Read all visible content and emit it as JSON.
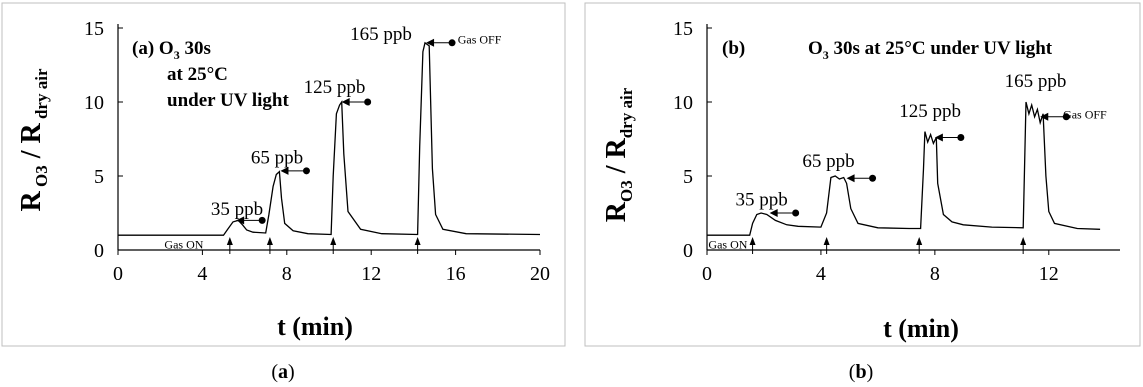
{
  "chart_data": [
    {
      "type": "line",
      "panel_label": "(a)",
      "caption_pre": "(",
      "caption_letter": "a",
      "caption_post": ")",
      "annotation": [
        "(a)  O₃ 30s",
        "at 25°C",
        "under UV light"
      ],
      "xlabel": "t (min)",
      "ylabel": "R O3 / R dry air",
      "xlim": [
        0,
        20
      ],
      "ylim": [
        0,
        15
      ],
      "xticks": [
        0,
        4,
        8,
        12,
        16,
        20
      ],
      "yticks": [
        0,
        5,
        10,
        15
      ],
      "series": [
        {
          "x": [
            0,
            5.0,
            5.2,
            5.45,
            5.7,
            5.9,
            6.1,
            6.4,
            7.0,
            7.15,
            7.35,
            7.5,
            7.65,
            7.75,
            7.9,
            8.3,
            9.0,
            10.1,
            10.2,
            10.35,
            10.5,
            10.6,
            10.7,
            10.9,
            11.5,
            12.5,
            14.2,
            14.3,
            14.45,
            14.55,
            14.75,
            14.9,
            15.05,
            15.4,
            16.5,
            20
          ],
          "y": [
            1.0,
            1.0,
            1.4,
            1.9,
            2.0,
            1.7,
            1.35,
            1.2,
            1.15,
            2.4,
            4.3,
            5.1,
            5.3,
            3.5,
            1.8,
            1.3,
            1.1,
            1.05,
            5.0,
            9.2,
            9.8,
            10.0,
            6.5,
            2.6,
            1.4,
            1.1,
            1.05,
            7.0,
            13.4,
            14.0,
            13.8,
            5.5,
            2.4,
            1.4,
            1.1,
            1.05
          ]
        }
      ],
      "labels": [
        {
          "text": "35 ppb",
          "x": 4.4,
          "y": 2.35
        },
        {
          "text": "65 ppb",
          "x": 6.3,
          "y": 5.85
        },
        {
          "text": "125 ppb",
          "x": 8.8,
          "y": 10.6
        },
        {
          "text": "165 ppb",
          "x": 11.0,
          "y": 14.2
        },
        {
          "text": "Gas OFF",
          "x": 16.1,
          "y": 13.95
        },
        {
          "text": "Gas ON",
          "x": 2.2,
          "y": 0.1
        }
      ],
      "gas_on_times": [
        5.3,
        7.2,
        10.2,
        14.2
      ],
      "gas_off_markers": [
        {
          "x": 5.6,
          "y": 2.0
        },
        {
          "x": 7.7,
          "y": 5.35
        },
        {
          "x": 10.6,
          "y": 10.0
        },
        {
          "x": 14.6,
          "y": 14.0
        }
      ]
    },
    {
      "type": "line",
      "panel_label": "(b)",
      "caption_pre": "(",
      "caption_letter": "b",
      "caption_post": ")",
      "annotation": [
        "(b)",
        "O₃ 30s at 25°C under UV light"
      ],
      "xlabel": "t (min)",
      "ylabel": "RO3 / Rdry air",
      "xlim": [
        0,
        14.5
      ],
      "ylim": [
        0,
        15
      ],
      "xticks": [
        0,
        4,
        8,
        12
      ],
      "yticks": [
        0,
        5,
        10,
        15
      ],
      "series": [
        {
          "x": [
            0,
            1.5,
            1.6,
            1.75,
            1.9,
            2.1,
            2.4,
            2.8,
            3.2,
            4.0,
            4.2,
            4.35,
            4.5,
            4.65,
            4.8,
            4.9,
            5.05,
            5.3,
            6.0,
            7.1,
            7.5,
            7.6,
            7.65,
            7.75,
            7.85,
            7.95,
            8.05,
            8.1,
            8.3,
            8.6,
            9.0,
            10.0,
            11.1,
            11.2,
            11.3,
            11.4,
            11.5,
            11.6,
            11.7,
            11.8,
            11.9,
            12.0,
            12.2,
            13.0,
            13.8
          ],
          "y": [
            1.0,
            1.0,
            1.8,
            2.4,
            2.5,
            2.4,
            2.0,
            1.7,
            1.6,
            1.55,
            2.5,
            4.9,
            5.0,
            4.8,
            4.9,
            4.5,
            2.8,
            1.8,
            1.5,
            1.45,
            1.45,
            5.5,
            8.0,
            7.3,
            7.8,
            7.2,
            7.6,
            4.5,
            2.4,
            1.9,
            1.7,
            1.55,
            1.5,
            10.0,
            9.2,
            9.8,
            9.0,
            9.5,
            8.6,
            9.2,
            5.0,
            2.6,
            1.8,
            1.45,
            1.4
          ]
        }
      ],
      "labels": [
        {
          "text": "35 ppb",
          "x": 1.0,
          "y": 3.0
        },
        {
          "text": "65 ppb",
          "x": 3.35,
          "y": 5.6
        },
        {
          "text": "125 ppb",
          "x": 6.75,
          "y": 9.0
        },
        {
          "text": "165 ppb",
          "x": 10.45,
          "y": 11.0
        },
        {
          "text": "Gas OFF",
          "x": 12.5,
          "y": 8.9
        },
        {
          "text": "Gas ON",
          "x": 0.05,
          "y": 0.1
        }
      ],
      "gas_on_times": [
        1.6,
        4.2,
        7.45,
        11.1
      ],
      "gas_off_markers": [
        {
          "x": 2.2,
          "y": 2.5
        },
        {
          "x": 4.9,
          "y": 4.85
        },
        {
          "x": 8.0,
          "y": 7.6
        },
        {
          "x": 11.7,
          "y": 9.0
        }
      ]
    }
  ]
}
